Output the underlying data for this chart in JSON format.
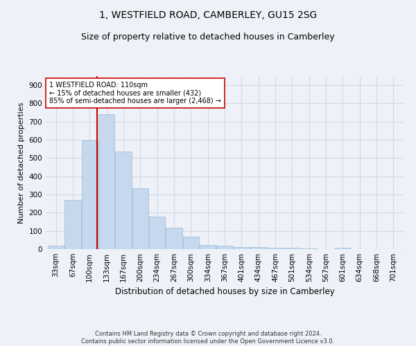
{
  "title1": "1, WESTFIELD ROAD, CAMBERLEY, GU15 2SG",
  "title2": "Size of property relative to detached houses in Camberley",
  "xlabel": "Distribution of detached houses by size in Camberley",
  "ylabel": "Number of detached properties",
  "bar_labels": [
    "33sqm",
    "67sqm",
    "100sqm",
    "133sqm",
    "167sqm",
    "200sqm",
    "234sqm",
    "267sqm",
    "300sqm",
    "334sqm",
    "367sqm",
    "401sqm",
    "434sqm",
    "467sqm",
    "501sqm",
    "534sqm",
    "567sqm",
    "601sqm",
    "634sqm",
    "668sqm",
    "701sqm"
  ],
  "bar_values": [
    20,
    270,
    595,
    740,
    535,
    335,
    178,
    118,
    68,
    22,
    20,
    12,
    10,
    8,
    7,
    5,
    0,
    6,
    0,
    0,
    0
  ],
  "bar_color": "#c5d8ed",
  "bar_edgecolor": "#a0b8d0",
  "grid_color": "#d0d8e8",
  "background_color": "#eef2f8",
  "vline_x": 2.45,
  "vline_color": "#cc0000",
  "annotation_text": "1 WESTFIELD ROAD: 110sqm\n← 15% of detached houses are smaller (432)\n85% of semi-detached houses are larger (2,468) →",
  "annotation_box_color": "#ffffff",
  "annotation_box_edgecolor": "#cc0000",
  "ylim": [
    0,
    950
  ],
  "yticks": [
    0,
    100,
    200,
    300,
    400,
    500,
    600,
    700,
    800,
    900
  ],
  "footnote": "Contains HM Land Registry data © Crown copyright and database right 2024.\nContains public sector information licensed under the Open Government Licence v3.0.",
  "title1_fontsize": 10,
  "title2_fontsize": 9,
  "xlabel_fontsize": 8.5,
  "ylabel_fontsize": 8,
  "tick_fontsize": 7.5,
  "annotation_fontsize": 7,
  "footnote_fontsize": 6
}
